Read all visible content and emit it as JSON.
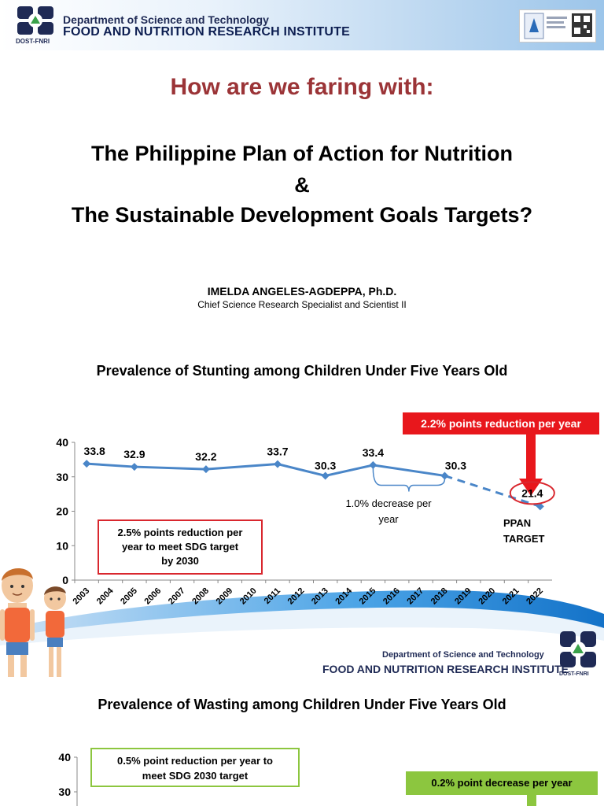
{
  "header": {
    "line1": "Department of Science and Technology",
    "line2": "FOOD AND NUTRITION RESEARCH INSTITUTE",
    "logo_label": "DOST-FNRI"
  },
  "title_question": "How are we faring with:",
  "main_title": {
    "line1": "The Philippine Plan of Action for Nutrition",
    "line2": "&",
    "line3": "The Sustainable Development Goals Targets?"
  },
  "author": {
    "name": "IMELDA ANGELES-AGDEPPA, Ph.D.",
    "role": "Chief Science Research Specialist and Scientist II"
  },
  "stunting": {
    "title": "Prevalence of Stunting among Children Under Five Years Old",
    "reduction_box": "2.2% points reduction per year",
    "sdg_note_line1": "2.5% points reduction per",
    "sdg_note_line2": "year to meet SDG target",
    "sdg_note_line3": "by 2030",
    "decrease_note_line1": "1.0% decrease per",
    "decrease_note_line2": "year",
    "ppan_line1": "PPAN",
    "ppan_line2": "TARGET"
  },
  "chart_data": [
    {
      "type": "line",
      "title": "Prevalence of Stunting among Children Under Five Years Old",
      "categories": [
        "2003",
        "2004",
        "2005",
        "2006",
        "2007",
        "2008",
        "2009",
        "2010",
        "2011",
        "2012",
        "2013",
        "2014",
        "2015",
        "2016",
        "2017",
        "2018",
        "2019",
        "2020",
        "2021",
        "2022"
      ],
      "series": [
        {
          "x": [
            "2003",
            "2005",
            "2008",
            "2011",
            "2013",
            "2015",
            "2018"
          ],
          "values": [
            33.8,
            32.9,
            32.2,
            33.7,
            30.3,
            33.4,
            30.3
          ]
        },
        {
          "x": [
            "2018",
            "2022"
          ],
          "values": [
            30.3,
            21.4
          ],
          "style": "dashed"
        }
      ],
      "y_ticks": [
        0,
        10,
        20,
        30,
        40
      ],
      "ylim": [
        0,
        40
      ],
      "color": "#4a86c8"
    },
    {
      "type": "line",
      "title": "Prevalence of Wasting among Children Under Five Years Old",
      "y_ticks": [
        30,
        40
      ]
    }
  ],
  "wasting": {
    "title": "Prevalence of Wasting among Children Under Five Years Old",
    "sdg_box_line1": "0.5% point reduction per year to",
    "sdg_box_line2": "meet SDG 2030 target",
    "decrease_box": "0.2% point decrease per year"
  },
  "footer": {
    "line1": "Department of Science and Technology",
    "line2": "FOOD AND NUTRITION RESEARCH INSTITUTE",
    "logo_label": "DOST-FNRI"
  },
  "colors": {
    "accent_red": "#e8171c",
    "title_red": "#9b3437",
    "series_blue": "#4a86c8",
    "green": "#8cc63f",
    "navy": "#1f2a55"
  }
}
